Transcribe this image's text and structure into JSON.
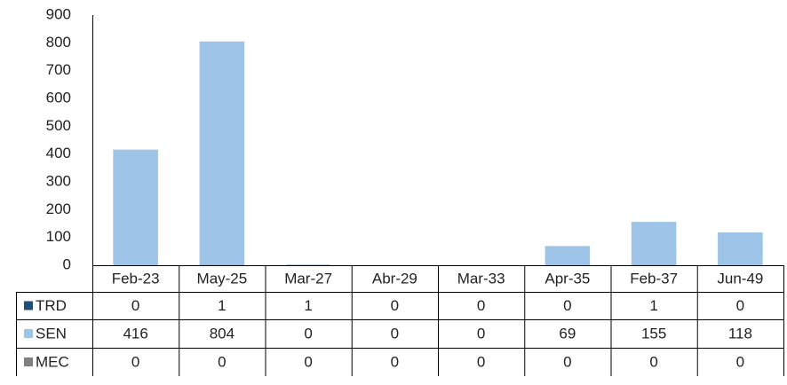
{
  "chart_data": {
    "type": "stacked_bar",
    "categories": [
      "Feb-23",
      "May-25",
      "Mar-27",
      "Abr-29",
      "Mar-33",
      "Apr-35",
      "Feb-37",
      "Jun-49"
    ],
    "series": [
      {
        "name": "TRD",
        "color": "#1f4e79",
        "values": [
          0,
          1,
          1,
          0,
          0,
          0,
          1,
          0
        ]
      },
      {
        "name": "SEN",
        "color": "#9dc3e6",
        "values": [
          416,
          804,
          0,
          0,
          0,
          69,
          155,
          118
        ]
      },
      {
        "name": "MEC",
        "color": "#808080",
        "values": [
          0,
          0,
          0,
          0,
          0,
          0,
          0,
          0
        ]
      }
    ],
    "ylim": [
      0,
      900
    ],
    "yticks": [
      0,
      100,
      200,
      300,
      400,
      500,
      600,
      700,
      800,
      900
    ]
  }
}
